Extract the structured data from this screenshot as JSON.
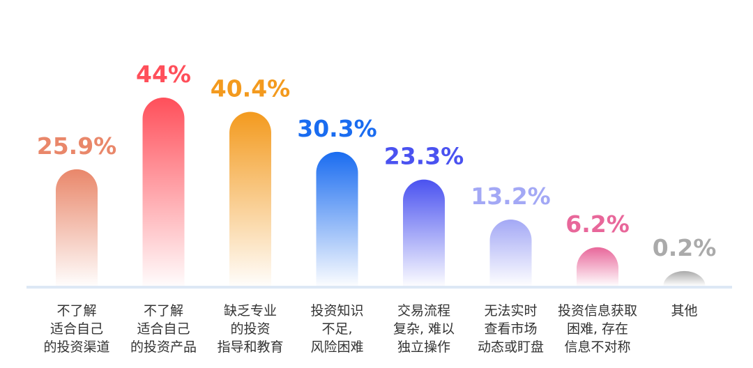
{
  "chart_data": {
    "type": "bar",
    "categories": [
      [
        "不了解",
        "适合自己",
        "的投资渠道"
      ],
      [
        "不了解",
        "适合自己",
        "的投资产品"
      ],
      [
        "缺乏专业",
        "的投资",
        "指导和教育"
      ],
      [
        "投资知识",
        "不足,",
        "风险困难"
      ],
      [
        "交易流程",
        "复杂, 难以",
        "独立操作"
      ],
      [
        "无法实时",
        "查看市场",
        "动态或盯盘"
      ],
      [
        "投资信息获取",
        "困难, 存在",
        "信息不对称"
      ],
      [
        "其他"
      ]
    ],
    "values": [
      25.9,
      44,
      40.4,
      30.3,
      23.3,
      13.2,
      6.2,
      0.2
    ],
    "value_labels": [
      "25.9%",
      "44%",
      "40.4%",
      "30.3%",
      "23.3%",
      "13.2%",
      "6.2%",
      "0.2%"
    ],
    "colors": [
      "#e9876a",
      "#ff4f5a",
      "#f39a1e",
      "#1a6cf0",
      "#4a52f0",
      "#a3a8f5",
      "#e8679a",
      "#aaaaaa"
    ]
  }
}
